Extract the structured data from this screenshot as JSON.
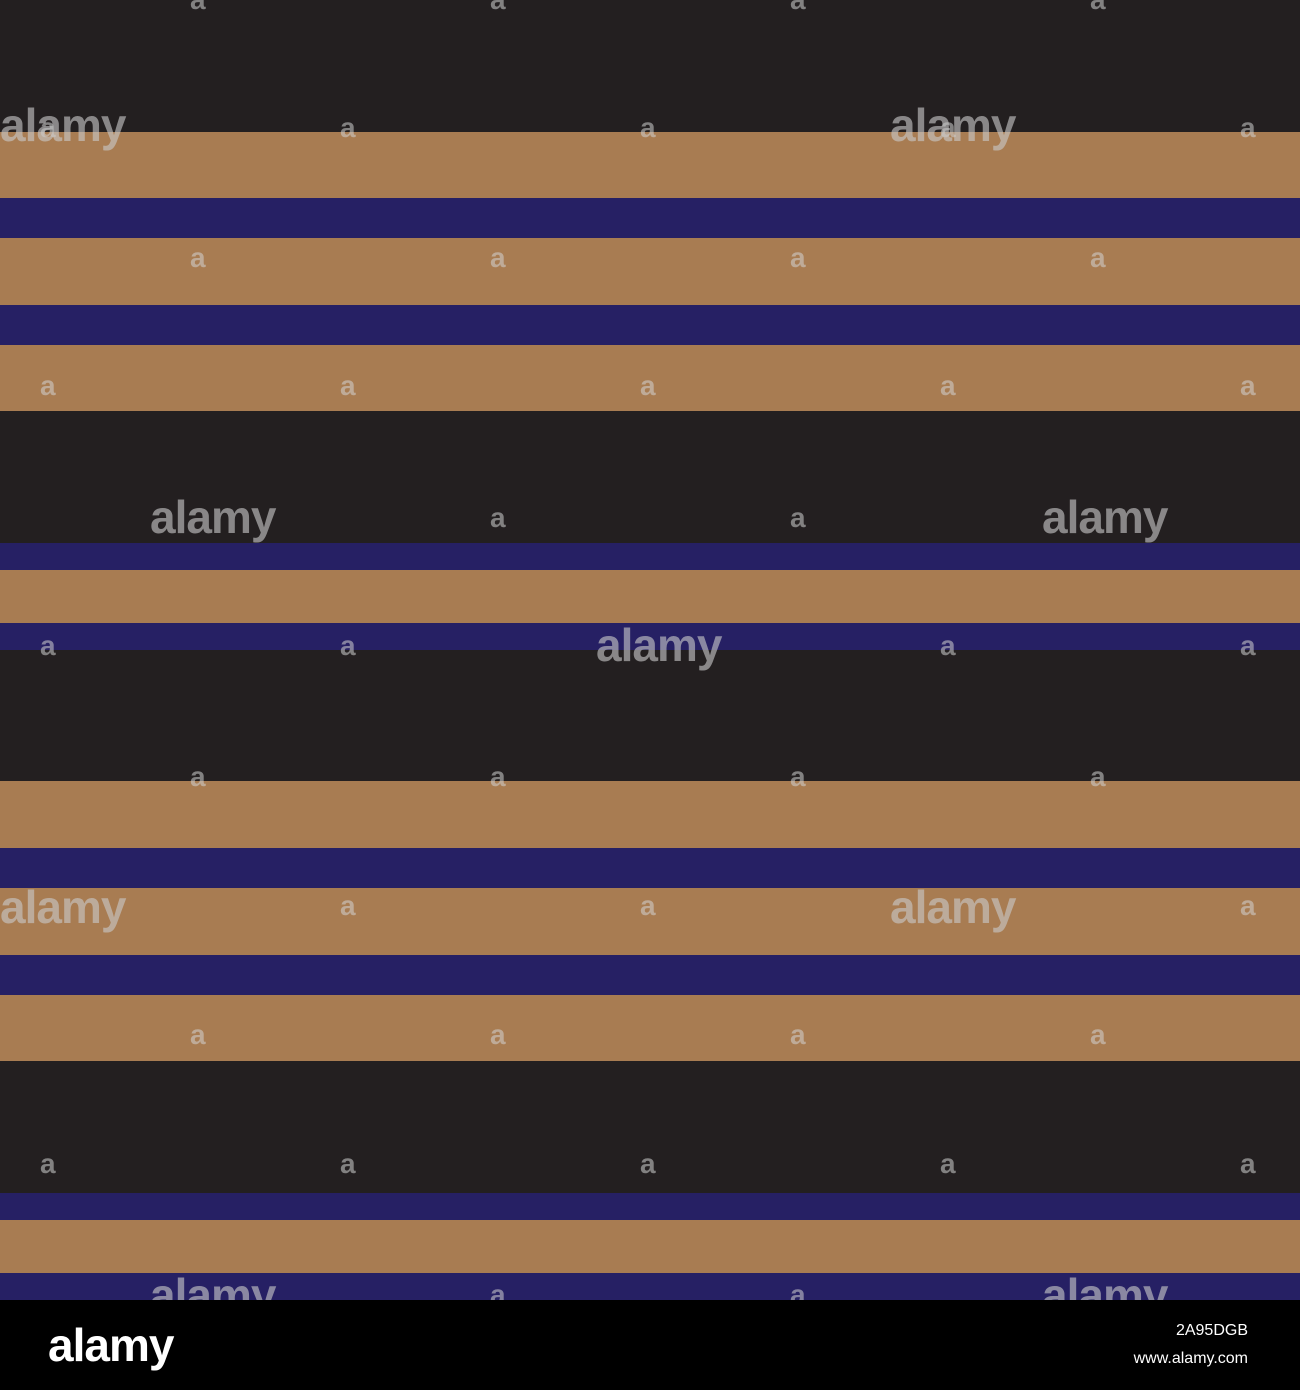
{
  "pattern": {
    "colors": {
      "black": "#231f20",
      "tan": "#a87c52",
      "navy": "#262064"
    },
    "stripe_sequence": [
      "black",
      "tan",
      "navy",
      "tan",
      "navy",
      "tan",
      "black",
      "navy",
      "tan",
      "navy",
      "black",
      "tan",
      "navy",
      "tan",
      "navy",
      "tan",
      "black",
      "navy",
      "tan",
      "navy"
    ]
  },
  "watermark": {
    "brand": "alamy",
    "mark": "a"
  },
  "footer": {
    "logo": "alamy",
    "image_id": "2A95DGB",
    "url": "www.alamy.com"
  }
}
